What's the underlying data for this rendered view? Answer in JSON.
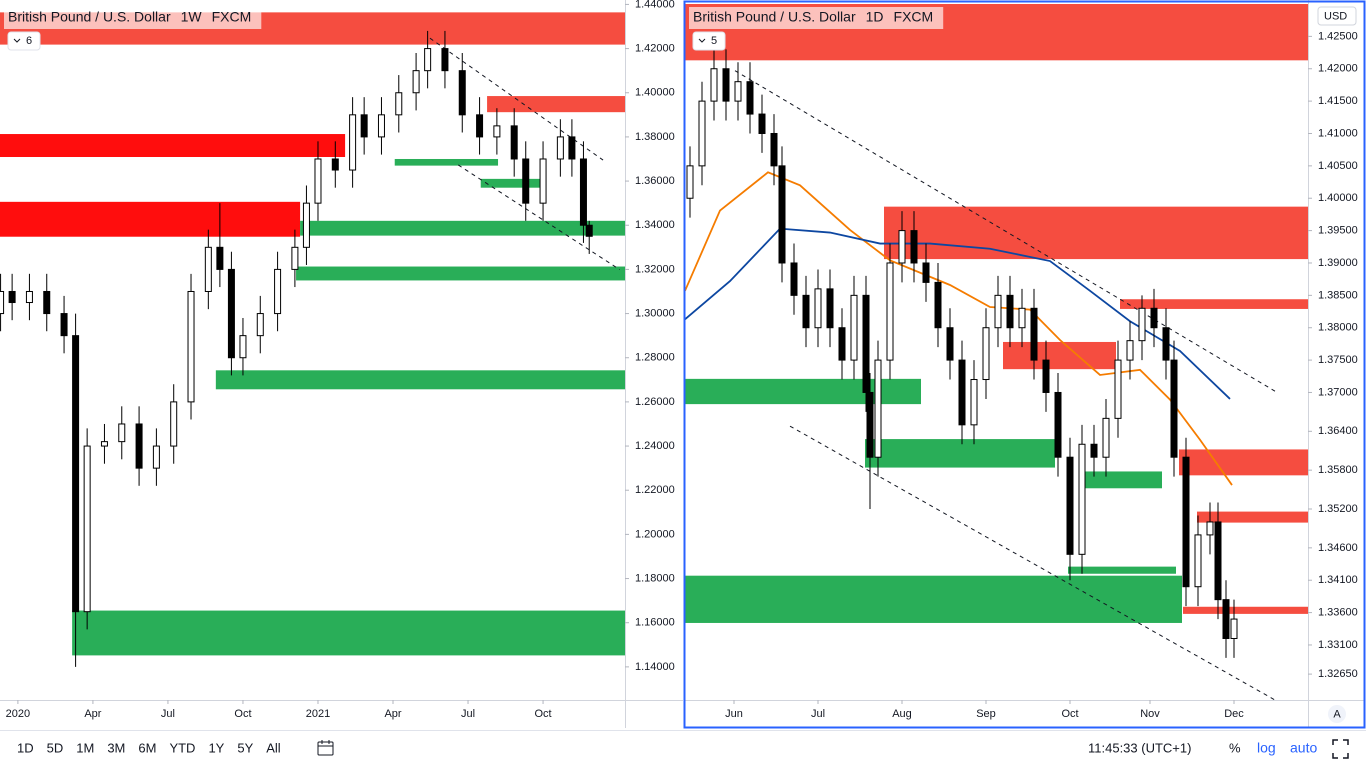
{
  "chart_data": [
    {
      "type": "candlestick",
      "title": "British Pound / U.S. Dollar",
      "interval": "1W",
      "source": "FXCM",
      "indicators": 6,
      "xlim": [
        -3.1,
        105.2
      ],
      "xticks": [
        {
          "value": 0,
          "label": "2020"
        },
        {
          "value": 13,
          "label": "Apr"
        },
        {
          "value": 26,
          "label": "Jul"
        },
        {
          "value": 39,
          "label": "Oct"
        },
        {
          "value": 52,
          "label": "2021"
        },
        {
          "value": 65,
          "label": "Apr"
        },
        {
          "value": 78,
          "label": "Jul"
        },
        {
          "value": 91,
          "label": "Oct"
        }
      ],
      "ylim": [
        1.125,
        1.442
      ],
      "yticks": [
        {
          "value": 1.14,
          "label": "1.14000"
        },
        {
          "value": 1.16,
          "label": "1.16000"
        },
        {
          "value": 1.18,
          "label": "1.18000"
        },
        {
          "value": 1.2,
          "label": "1.20000"
        },
        {
          "value": 1.22,
          "label": "1.22000"
        },
        {
          "value": 1.24,
          "label": "1.24000"
        },
        {
          "value": 1.26,
          "label": "1.26000"
        },
        {
          "value": 1.28,
          "label": "1.28000"
        },
        {
          "value": 1.3,
          "label": "1.30000"
        },
        {
          "value": 1.32,
          "label": "1.32000"
        },
        {
          "value": 1.34,
          "label": "1.34000"
        },
        {
          "value": 1.36,
          "label": "1.36000"
        },
        {
          "value": 1.38,
          "label": "1.38000"
        },
        {
          "value": 1.4,
          "label": "1.40000"
        },
        {
          "value": 1.42,
          "label": "1.42000"
        },
        {
          "value": 1.44,
          "label": "1.44000"
        }
      ],
      "up_color": "#ffffff",
      "down_color": "#000000",
      "x": [
        -3,
        -1,
        2,
        5,
        8,
        10,
        12,
        15,
        18,
        21,
        24,
        27,
        30,
        33,
        35,
        37,
        39,
        42,
        45,
        48,
        50,
        52,
        55,
        58,
        60,
        63,
        66,
        69,
        71,
        74,
        77,
        80,
        83,
        86,
        88,
        91,
        94,
        96,
        98,
        99
      ],
      "open": [
        1.3,
        1.31,
        1.305,
        1.31,
        1.3,
        1.29,
        1.165,
        1.24,
        1.242,
        1.25,
        1.23,
        1.24,
        1.26,
        1.31,
        1.33,
        1.32,
        1.28,
        1.29,
        1.3,
        1.32,
        1.33,
        1.35,
        1.37,
        1.365,
        1.39,
        1.38,
        1.39,
        1.4,
        1.41,
        1.42,
        1.41,
        1.39,
        1.38,
        1.385,
        1.37,
        1.35,
        1.37,
        1.38,
        1.37,
        1.34
      ],
      "high": [
        1.318,
        1.318,
        1.318,
        1.318,
        1.308,
        1.3,
        1.248,
        1.25,
        1.258,
        1.258,
        1.248,
        1.268,
        1.318,
        1.338,
        1.35,
        1.328,
        1.298,
        1.308,
        1.328,
        1.338,
        1.358,
        1.378,
        1.378,
        1.398,
        1.398,
        1.398,
        1.408,
        1.418,
        1.428,
        1.428,
        1.418,
        1.398,
        1.393,
        1.393,
        1.378,
        1.378,
        1.388,
        1.388,
        1.378,
        1.342
      ],
      "low": [
        1.292,
        1.297,
        1.297,
        1.292,
        1.282,
        1.14,
        1.157,
        1.232,
        1.234,
        1.222,
        1.222,
        1.232,
        1.252,
        1.302,
        1.312,
        1.272,
        1.272,
        1.282,
        1.292,
        1.312,
        1.322,
        1.342,
        1.357,
        1.357,
        1.372,
        1.372,
        1.382,
        1.392,
        1.402,
        1.402,
        1.382,
        1.372,
        1.372,
        1.362,
        1.342,
        1.342,
        1.362,
        1.362,
        1.332,
        1.327
      ],
      "close": [
        1.31,
        1.305,
        1.31,
        1.3,
        1.29,
        1.165,
        1.24,
        1.242,
        1.25,
        1.23,
        1.24,
        1.26,
        1.31,
        1.33,
        1.32,
        1.28,
        1.29,
        1.3,
        1.32,
        1.33,
        1.35,
        1.37,
        1.365,
        1.39,
        1.38,
        1.39,
        1.4,
        1.41,
        1.42,
        1.41,
        1.39,
        1.38,
        1.385,
        1.37,
        1.35,
        1.37,
        1.38,
        1.37,
        1.34,
        1.335
      ],
      "zones": [
        {
          "color": "#f44336",
          "x": [
            -3.1,
            105.2
          ],
          "y": [
            1.4218,
            1.4364
          ]
        },
        {
          "color": "#ff0000",
          "x": [
            -3.1,
            56.7
          ],
          "y": [
            1.3709,
            1.3813
          ]
        },
        {
          "color": "#ff0000",
          "x": [
            -3.1,
            48.9
          ],
          "y": [
            1.3348,
            1.3506
          ]
        },
        {
          "color": "#f44336",
          "x": [
            81.3,
            105.2
          ],
          "y": [
            1.3912,
            1.3985
          ]
        },
        {
          "color": "#1daa4f",
          "x": [
            48.9,
            105.2
          ],
          "y": [
            1.3353,
            1.342
          ]
        },
        {
          "color": "#1daa4f",
          "x": [
            48.2,
            105.2
          ],
          "y": [
            1.315,
            1.3213
          ]
        },
        {
          "color": "#1daa4f",
          "x": [
            34.3,
            105.2
          ],
          "y": [
            1.2657,
            1.2743
          ]
        },
        {
          "color": "#1daa4f",
          "x": [
            9.4,
            105.2
          ],
          "y": [
            1.1452,
            1.1655
          ]
        },
        {
          "color": "#1daa4f",
          "x": [
            65.3,
            83.2
          ],
          "y": [
            1.367,
            1.37
          ]
        },
        {
          "color": "#1daa4f",
          "x": [
            80.2,
            90.6
          ],
          "y": [
            1.357,
            1.361
          ]
        }
      ],
      "trendlines": [
        {
          "x": [
            71.4,
            101.4
          ],
          "y": [
            1.4247,
            1.3695
          ]
        },
        {
          "x": [
            76.3,
            104.3
          ],
          "y": [
            1.3673,
            1.3199
          ]
        }
      ]
    },
    {
      "type": "candlestick",
      "title": "British Pound / U.S. Dollar",
      "interval": "1D",
      "source": "FXCM",
      "indicators": 5,
      "xlim": [
        -12.25,
        143.5
      ],
      "xticks": [
        {
          "value": 0,
          "label": "Jun"
        },
        {
          "value": 21,
          "label": "Jul"
        },
        {
          "value": 42,
          "label": "Aug"
        },
        {
          "value": 63,
          "label": "Sep"
        },
        {
          "value": 84,
          "label": "Oct"
        },
        {
          "value": 104,
          "label": "Nov"
        },
        {
          "value": 125,
          "label": "Dec"
        }
      ],
      "ylim": [
        1.3225,
        1.43
      ],
      "yticks": [
        {
          "value": 1.3265,
          "label": "1.32650"
        },
        {
          "value": 1.331,
          "label": "1.33100"
        },
        {
          "value": 1.336,
          "label": "1.33600"
        },
        {
          "value": 1.341,
          "label": "1.34100"
        },
        {
          "value": 1.346,
          "label": "1.34600"
        },
        {
          "value": 1.352,
          "label": "1.35200"
        },
        {
          "value": 1.358,
          "label": "1.35800"
        },
        {
          "value": 1.364,
          "label": "1.36400"
        },
        {
          "value": 1.37,
          "label": "1.37000"
        },
        {
          "value": 1.375,
          "label": "1.37500"
        },
        {
          "value": 1.38,
          "label": "1.38000"
        },
        {
          "value": 1.385,
          "label": "1.38500"
        },
        {
          "value": 1.39,
          "label": "1.39000"
        },
        {
          "value": 1.395,
          "label": "1.39500"
        },
        {
          "value": 1.4,
          "label": "1.40000"
        },
        {
          "value": 1.405,
          "label": "1.40500"
        },
        {
          "value": 1.41,
          "label": "1.41000"
        },
        {
          "value": 1.415,
          "label": "1.41500"
        },
        {
          "value": 1.42,
          "label": "1.42000"
        },
        {
          "value": 1.425,
          "label": "1.42500"
        }
      ],
      "up_color": "#ffffff",
      "down_color": "#000000",
      "x": [
        -11,
        -8,
        -5,
        -2,
        1,
        4,
        7,
        10,
        12,
        15,
        18,
        21,
        24,
        27,
        30,
        33,
        34,
        36,
        39,
        42,
        45,
        48,
        51,
        54,
        57,
        60,
        63,
        66,
        69,
        72,
        75,
        78,
        81,
        84,
        87,
        90,
        93,
        96,
        99,
        102,
        105,
        108,
        110,
        113,
        116,
        119,
        121,
        123,
        125
      ],
      "open": [
        1.4,
        1.405,
        1.415,
        1.42,
        1.415,
        1.418,
        1.413,
        1.41,
        1.405,
        1.39,
        1.385,
        1.38,
        1.386,
        1.38,
        1.375,
        1.385,
        1.37,
        1.36,
        1.375,
        1.39,
        1.395,
        1.39,
        1.387,
        1.38,
        1.375,
        1.365,
        1.372,
        1.38,
        1.385,
        1.38,
        1.383,
        1.375,
        1.37,
        1.36,
        1.345,
        1.362,
        1.36,
        1.366,
        1.375,
        1.378,
        1.383,
        1.38,
        1.375,
        1.36,
        1.34,
        1.348,
        1.35,
        1.338,
        1.332
      ],
      "high": [
        1.408,
        1.418,
        1.423,
        1.423,
        1.421,
        1.421,
        1.416,
        1.413,
        1.408,
        1.393,
        1.388,
        1.389,
        1.389,
        1.383,
        1.388,
        1.388,
        1.373,
        1.378,
        1.393,
        1.398,
        1.398,
        1.393,
        1.39,
        1.383,
        1.378,
        1.375,
        1.383,
        1.388,
        1.388,
        1.386,
        1.386,
        1.378,
        1.373,
        1.363,
        1.365,
        1.365,
        1.369,
        1.378,
        1.381,
        1.385,
        1.386,
        1.383,
        1.378,
        1.363,
        1.351,
        1.353,
        1.353,
        1.341,
        1.338
      ],
      "low": [
        1.397,
        1.402,
        1.412,
        1.412,
        1.412,
        1.41,
        1.407,
        1.402,
        1.387,
        1.382,
        1.377,
        1.377,
        1.377,
        1.372,
        1.372,
        1.367,
        1.352,
        1.357,
        1.372,
        1.387,
        1.387,
        1.384,
        1.377,
        1.372,
        1.362,
        1.362,
        1.369,
        1.377,
        1.377,
        1.377,
        1.372,
        1.367,
        1.357,
        1.341,
        1.342,
        1.357,
        1.357,
        1.363,
        1.372,
        1.375,
        1.377,
        1.372,
        1.357,
        1.337,
        1.337,
        1.345,
        1.335,
        1.329,
        1.329
      ],
      "close": [
        1.405,
        1.415,
        1.42,
        1.415,
        1.418,
        1.413,
        1.41,
        1.405,
        1.39,
        1.385,
        1.38,
        1.386,
        1.38,
        1.375,
        1.385,
        1.37,
        1.36,
        1.375,
        1.39,
        1.395,
        1.39,
        1.387,
        1.38,
        1.375,
        1.365,
        1.372,
        1.38,
        1.385,
        1.38,
        1.383,
        1.375,
        1.37,
        1.36,
        1.345,
        1.362,
        1.36,
        1.366,
        1.375,
        1.378,
        1.383,
        1.38,
        1.375,
        1.36,
        1.34,
        1.348,
        1.35,
        1.338,
        1.332,
        1.335
      ],
      "zones": [
        {
          "color": "#f44336",
          "x": [
            -12.25,
            143.5
          ],
          "y": [
            1.4213,
            1.43
          ]
        },
        {
          "color": "#f44336",
          "x": [
            37.5,
            143.5
          ],
          "y": [
            1.3906,
            1.3987
          ]
        },
        {
          "color": "#f44336",
          "x": [
            96.5,
            143.5
          ],
          "y": [
            1.3829,
            1.3844
          ]
        },
        {
          "color": "#f44336",
          "x": [
            67.25,
            95.5
          ],
          "y": [
            1.3736,
            1.3778
          ]
        },
        {
          "color": "#f44336",
          "x": [
            111.25,
            143.5
          ],
          "y": [
            1.3572,
            1.3612
          ]
        },
        {
          "color": "#f44336",
          "x": [
            115.75,
            143.5
          ],
          "y": [
            1.3499,
            1.3516
          ]
        },
        {
          "color": "#f44336",
          "x": [
            112.25,
            143.5
          ],
          "y": [
            1.3358,
            1.3369
          ]
        },
        {
          "color": "#1daa4f",
          "x": [
            -12.25,
            46.75
          ],
          "y": [
            1.3682,
            1.3721
          ]
        },
        {
          "color": "#1daa4f",
          "x": [
            32.75,
            80.25
          ],
          "y": [
            1.3584,
            1.3628
          ]
        },
        {
          "color": "#1daa4f",
          "x": [
            86.75,
            107
          ],
          "y": [
            1.3552,
            1.3578
          ]
        },
        {
          "color": "#1daa4f",
          "x": [
            83.5,
            110.5
          ],
          "y": [
            1.342,
            1.3431
          ]
        },
        {
          "color": "#1daa4f",
          "x": [
            -12.25,
            112
          ],
          "y": [
            1.3344,
            1.3417
          ]
        }
      ],
      "trendlines": [
        {
          "x": [
            0.25,
            135.25
          ],
          "y": [
            1.4197,
            1.3702
          ]
        },
        {
          "x": [
            14,
            135.25
          ],
          "y": [
            1.3648,
            1.3225
          ]
        }
      ],
      "lines": [
        {
          "color": "#f57c00",
          "x": [
            -12.25,
            -3.5,
            8.5,
            16.5,
            29,
            39,
            54,
            64,
            74,
            81.5,
            91.5,
            101.5,
            109,
            116.5,
            124.5
          ],
          "y": [
            1.3857,
            1.3981,
            1.404,
            1.402,
            1.3951,
            1.3904,
            1.3866,
            1.3832,
            1.3828,
            1.3781,
            1.3727,
            1.3735,
            1.3689,
            1.3627,
            1.3557
          ]
        },
        {
          "color": "#0d47a1",
          "x": [
            -12.25,
            -1,
            11.5,
            24,
            36.5,
            49,
            64,
            79,
            89,
            99,
            111.5,
            124
          ],
          "y": [
            1.3813,
            1.3872,
            1.3953,
            1.3947,
            1.393,
            1.393,
            1.3922,
            1.3903,
            1.3857,
            1.381,
            1.3764,
            1.369
          ]
        }
      ]
    }
  ],
  "currency": "USD",
  "auto_button": "A",
  "toolbar": {
    "ranges": [
      "1D",
      "5D",
      "1M",
      "3M",
      "6M",
      "YTD",
      "1Y",
      "5Y",
      "All"
    ],
    "time": "11:45:33 (UTC+1)",
    "percent": "%",
    "log": "log",
    "auto": "auto"
  }
}
